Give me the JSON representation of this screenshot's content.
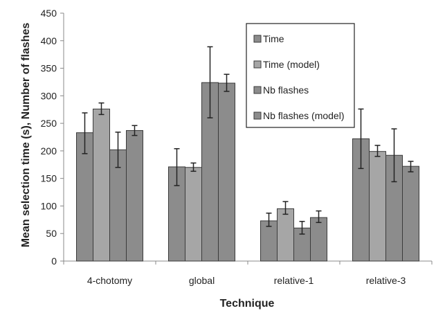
{
  "chart_data": {
    "type": "bar",
    "title": "",
    "xlabel": "Technique",
    "ylabel": "Mean selection time (s), Number of flashes",
    "ylim": [
      0,
      450
    ],
    "yticks": [
      0,
      50,
      100,
      150,
      200,
      250,
      300,
      350,
      400,
      450
    ],
    "grid": false,
    "legend_position": "top-right",
    "categories": [
      "4-chotomy",
      "global",
      "relative-1",
      "relative-3"
    ],
    "series": [
      {
        "name": "Time",
        "values": [
          233,
          171,
          73,
          222
        ],
        "error": [
          [
            195,
            269
          ],
          [
            137,
            204
          ],
          [
            63,
            87
          ],
          [
            168,
            276
          ]
        ],
        "color": "#8c8c8c"
      },
      {
        "name": "Time (model)",
        "values": [
          276,
          170,
          95,
          199
        ],
        "error": [
          [
            266,
            287
          ],
          [
            163,
            178
          ],
          [
            85,
            108
          ],
          [
            190,
            210
          ]
        ],
        "color": "#a6a6a6"
      },
      {
        "name": "Nb flashes",
        "values": [
          202,
          324,
          60,
          192
        ],
        "error": [
          [
            170,
            234
          ],
          [
            260,
            389
          ],
          [
            49,
            72
          ],
          [
            144,
            240
          ]
        ],
        "color": "#8c8c8c"
      },
      {
        "name": "Nb flashes (model)",
        "values": [
          237,
          323,
          79,
          172
        ],
        "error": [
          [
            228,
            246
          ],
          [
            308,
            339
          ],
          [
            70,
            91
          ],
          [
            162,
            181
          ]
        ],
        "color": "#8c8c8c"
      }
    ]
  }
}
